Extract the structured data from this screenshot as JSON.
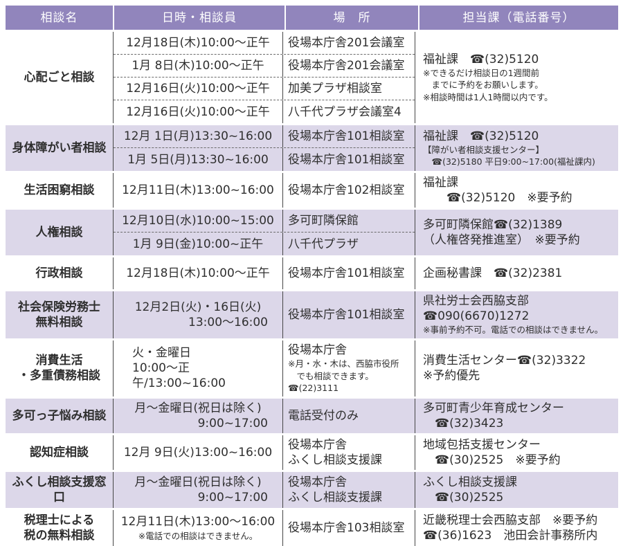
{
  "table": {
    "colors": {
      "header_bg": "#9185bc",
      "row_tint": "#dcd7e9",
      "grid_line": "#454545",
      "header_text": "#ffffff",
      "body_text": "#2f2f2f"
    },
    "headers": [
      "相談名",
      "日時・相談員",
      "場　所",
      "担当課（電話番号）"
    ],
    "rows": [
      {
        "name": "心配ごと相談",
        "tinted": false,
        "schedule": [
          {
            "time": [
              {
                "text": "12月18日(木)10:00〜正午"
              }
            ],
            "place": [
              "役場本庁舎201会議室"
            ]
          },
          {
            "time": [
              {
                "text": "1月 8日(木)10:00〜正午"
              }
            ],
            "place": [
              "役場本庁舎201会議室"
            ]
          },
          {
            "time": [
              {
                "text": "12月16日(火)10:00〜正午"
              }
            ],
            "place": [
              "加美プラザ相談室"
            ]
          },
          {
            "time": [
              {
                "text": "12月16日(火)10:00〜正午"
              }
            ],
            "place": [
              "八千代プラザ会議室4"
            ]
          }
        ],
        "contact": [
          {
            "text": "福祉課　☎(32)5120"
          },
          {
            "text": "※できるだけ相談日の1週間前",
            "small": true
          },
          {
            "text": "　までに予約をお願いします。",
            "small": true
          },
          {
            "text": "※相談時間は1人1時間以内です。",
            "small": true
          }
        ]
      },
      {
        "name": "身体障がい者相談",
        "tinted": true,
        "schedule": [
          {
            "time": [
              {
                "text": "12月 1日(月)13:30~16:00"
              }
            ],
            "place": [
              "役場本庁舎101相談室"
            ]
          },
          {
            "time": [
              {
                "text": "1月 5日(月)13:30~16:00"
              }
            ],
            "place": [
              "役場本庁舎101相談室"
            ]
          }
        ],
        "contact": [
          {
            "text": "福祉課　☎(32)5120"
          },
          {
            "text": "【障がい者相談支援センター】",
            "small": true
          },
          {
            "text": "　☎(32)5180 平日9:00~17:00(福祉課内)",
            "small": true
          }
        ]
      },
      {
        "name": "生活困窮相談",
        "tinted": false,
        "schedule": [
          {
            "time": [
              {
                "text": "12月11日(木)13:00~16:00"
              }
            ],
            "place": [
              "役場本庁舎102相談室"
            ]
          }
        ],
        "contact": [
          {
            "text": "福祉課"
          },
          {
            "text": "　　☎(32)5120　※要予約"
          }
        ]
      },
      {
        "name": "人権相談",
        "tinted": true,
        "schedule": [
          {
            "time": [
              {
                "text": "12月10日(水)10:00~15:00"
              }
            ],
            "place": [
              "多可町隣保館"
            ]
          },
          {
            "time": [
              {
                "text": "1月 9日(金)10:00~正午"
              }
            ],
            "place": [
              "八千代プラザ"
            ]
          }
        ],
        "contact": [
          {
            "text": "多可町隣保館☎(32)1389"
          },
          {
            "text": "（人権啓発推進室）　※要予約"
          }
        ]
      },
      {
        "name": "行政相談",
        "tinted": false,
        "schedule": [
          {
            "time": [
              {
                "text": "12月18日(木)10:00〜正午"
              }
            ],
            "place": [
              "役場本庁舎101相談室"
            ]
          }
        ],
        "contact": [
          {
            "text": "企画秘書課　☎(32)2381"
          }
        ]
      },
      {
        "name": "社会保険労務士\n無料相談",
        "tinted": true,
        "schedule": [
          {
            "time": [
              {
                "text": "12月2日(火)・16日(火)"
              },
              {
                "text": "13:00〜16:00",
                "align": "right"
              }
            ],
            "place": [
              "役場本庁舎101相談室"
            ]
          }
        ],
        "contact": [
          {
            "text": "県社労士会西脇支部☎090(6670)1272"
          },
          {
            "text": "※事前予約不可。電話での相談はできません。",
            "small": true
          }
        ]
      },
      {
        "name": "消費生活\n・多重債務相談",
        "tinted": false,
        "schedule": [
          {
            "time": [
              {
                "text": "火・金曜日",
                "align": "left"
              },
              {
                "text": "10:00〜正午/13:00~16:00",
                "align": "left"
              }
            ],
            "place": [
              "役場本庁舎"
            ],
            "place_note": [
              "※月・水・木は、西脇市役所",
              "　でも相談できます。☎(22)3111"
            ]
          }
        ],
        "contact": [
          {
            "text": "消費生活センター☎(32)3322"
          },
          {
            "text": "※予約優先"
          }
        ]
      },
      {
        "name": "多可っ子悩み相談",
        "tinted": true,
        "schedule": [
          {
            "time": [
              {
                "text": "月〜金曜日(祝日は除く)"
              },
              {
                "text": "9:00~17:00",
                "align": "right"
              }
            ],
            "place": [
              "電話受付のみ"
            ]
          }
        ],
        "contact": [
          {
            "text": "多可町青少年育成センター"
          },
          {
            "text": "　☎(32)3423"
          }
        ]
      },
      {
        "name": "認知症相談",
        "tinted": false,
        "schedule": [
          {
            "time": [
              {
                "text": "12月 9日(火)13:00~16:00"
              }
            ],
            "place": [
              "役場本庁舎",
              "ふくし相談支援課"
            ]
          }
        ],
        "contact": [
          {
            "text": "地域包括支援センター"
          },
          {
            "text": "　☎(30)2525　※要予約"
          }
        ]
      },
      {
        "name": "ふくし相談支援窓口",
        "tinted": true,
        "schedule": [
          {
            "time": [
              {
                "text": "月〜金曜日(祝日は除く)"
              },
              {
                "text": "9:00~17:00",
                "align": "right"
              }
            ],
            "place": [
              "役場本庁舎",
              "ふくし相談支援課"
            ]
          }
        ],
        "contact": [
          {
            "text": "ふくし相談支援課"
          },
          {
            "text": "　☎(30)2525"
          }
        ]
      },
      {
        "name": "税理士による\n税の無料相談",
        "tinted": false,
        "schedule": [
          {
            "time": [
              {
                "text": "12月11日(木)13:00〜16:00"
              }
            ],
            "time_note": "※電話での相談はできません。",
            "place": [
              "役場本庁舎103相談室"
            ]
          }
        ],
        "contact": [
          {
            "text": "近畿税理士会西脇支部　※要予約"
          },
          {
            "text": "☎(36)1623　池田会計事務所内"
          }
        ]
      }
    ]
  }
}
